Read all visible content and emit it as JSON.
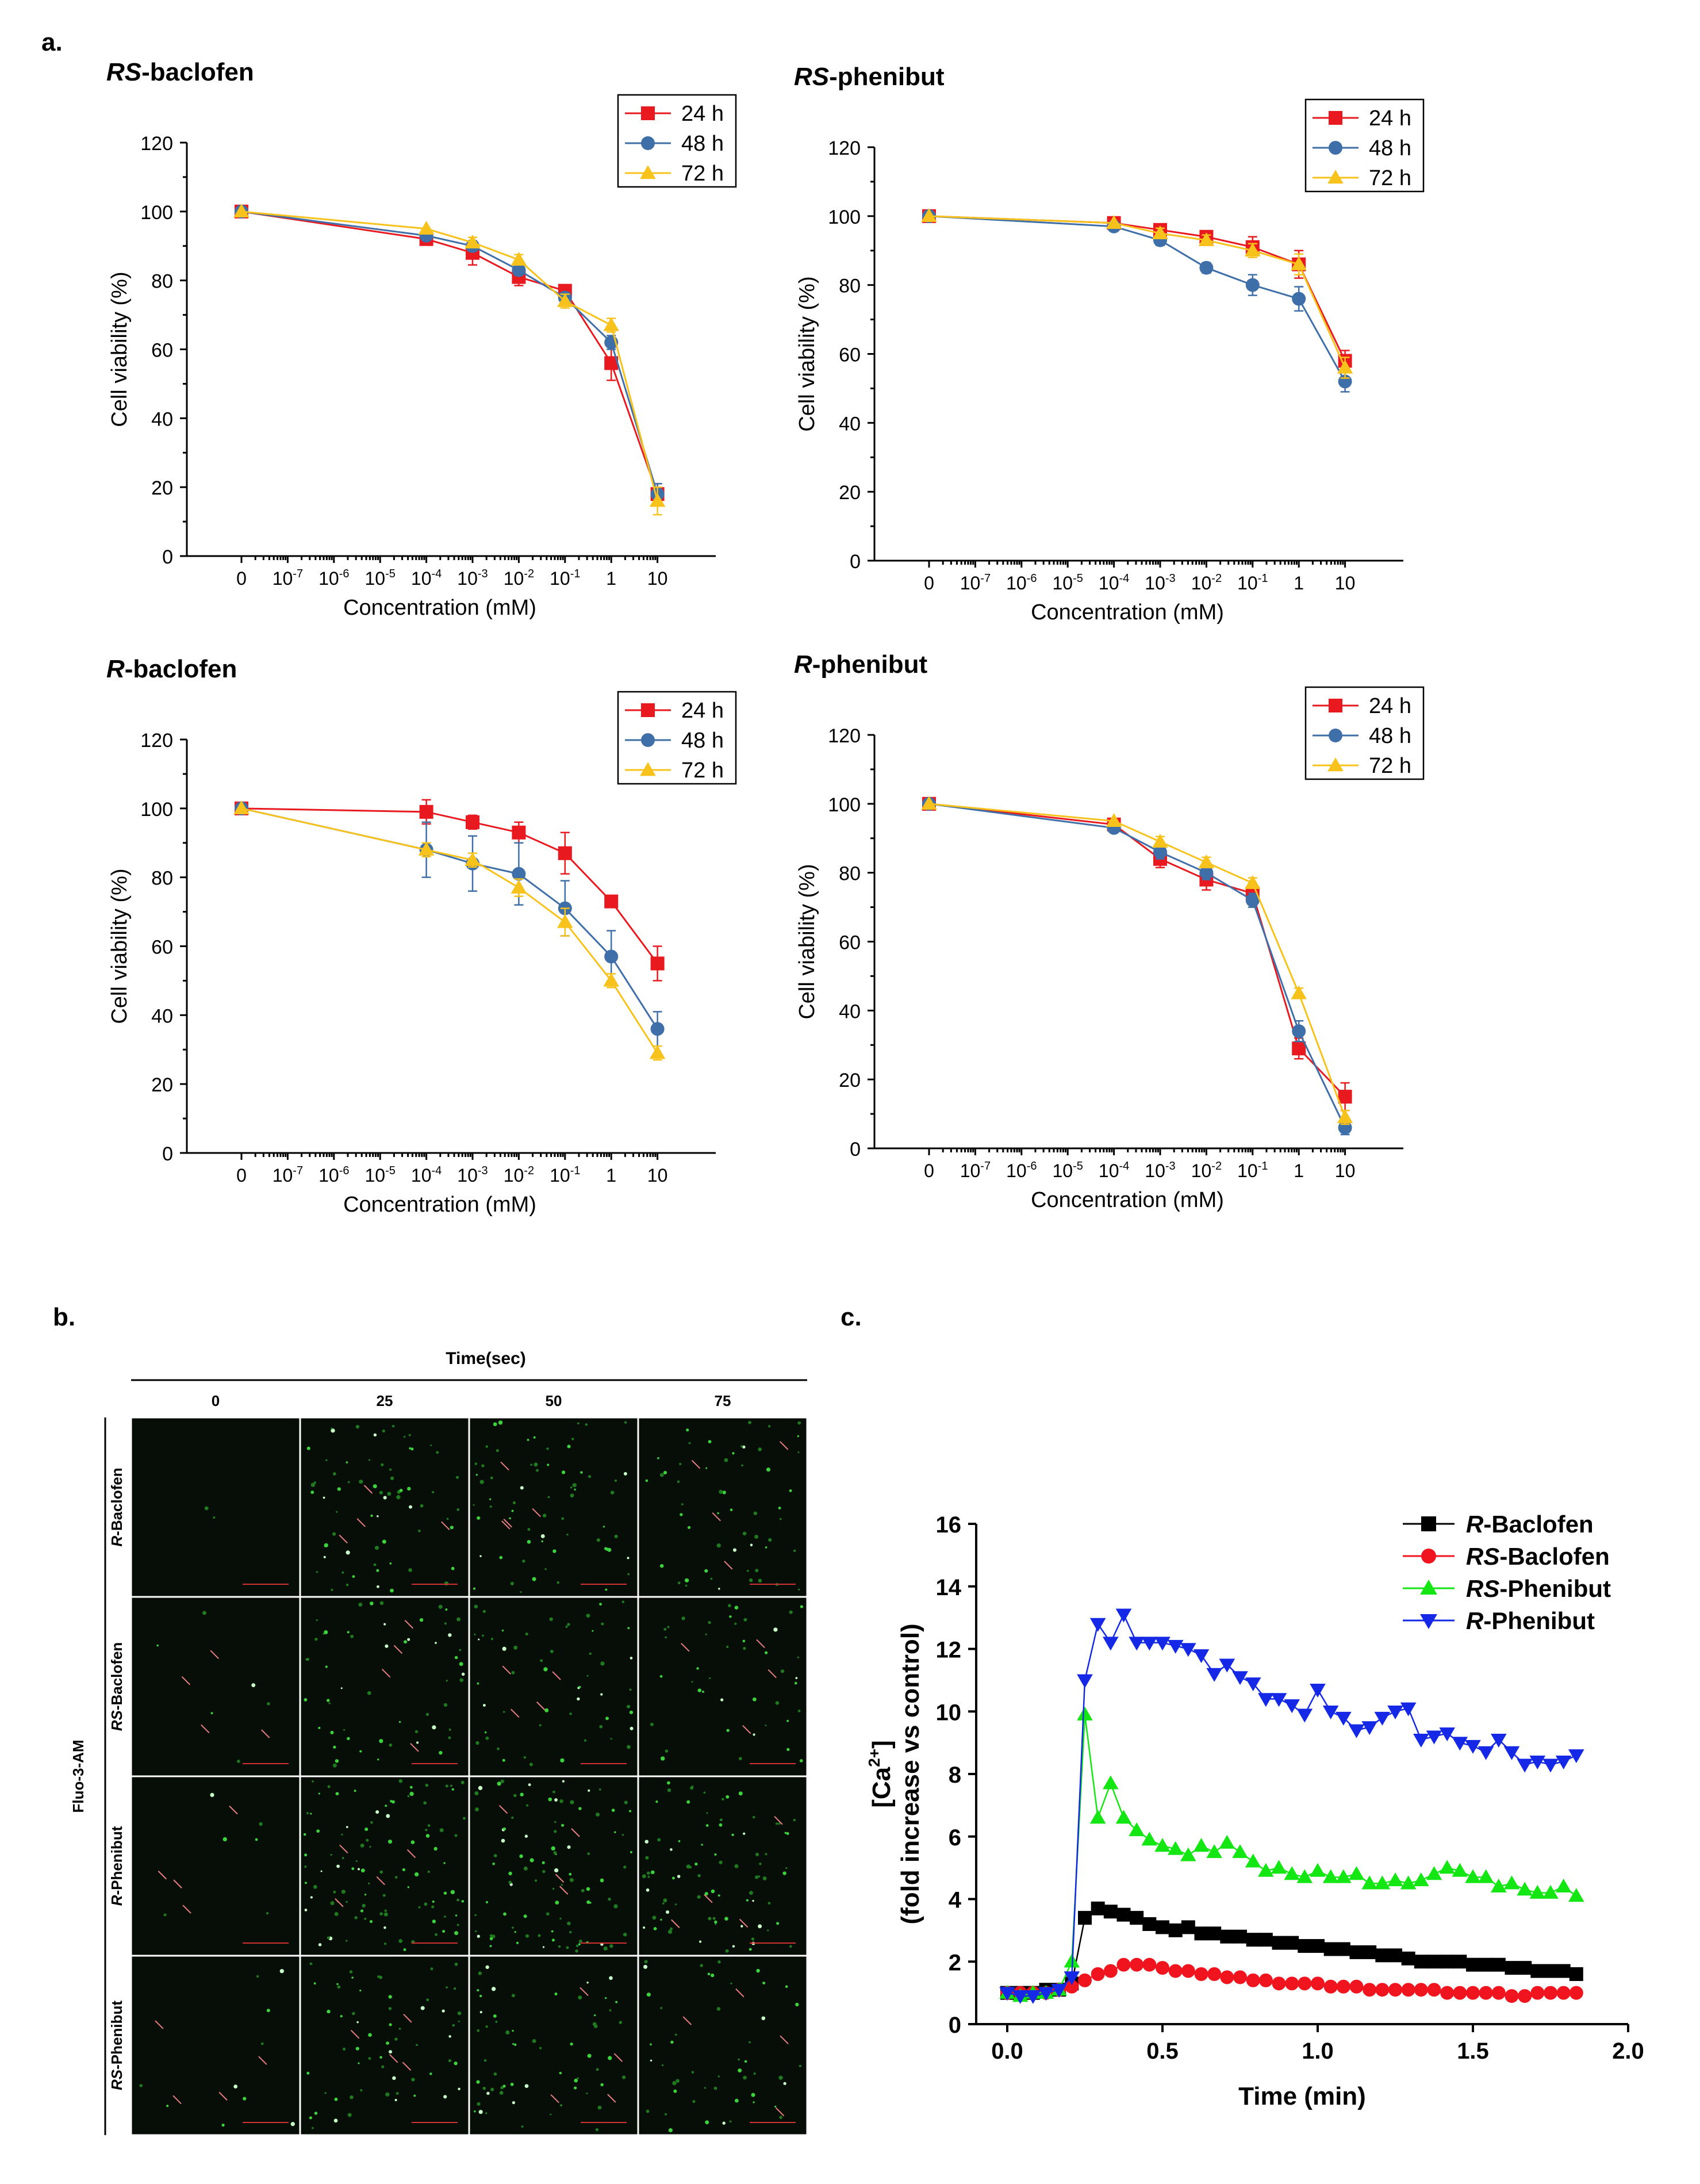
{
  "panel_letters": {
    "a": "a.",
    "b": "b.",
    "c": "c."
  },
  "colors": {
    "24h": "#e8191f",
    "48h": "#3f6fa8",
    "72h": "#f7c21b",
    "R-Baclofen": "#000000",
    "RS-Baclofen": "#f0141e",
    "RS-Phenibut": "#14e614",
    "R-Phenibut": "#1428e6"
  },
  "panel_b": {
    "header": "Time(sec)",
    "time_labels": [
      "0",
      "25",
      "50",
      "75"
    ],
    "side_label": "Fluo-3-AM",
    "row_labels": [
      "R-Baclofen",
      "RS-Baclofen",
      "R-Phenibut",
      "RS-Phenibut"
    ],
    "dot_density": [
      [
        0.02,
        0.55,
        0.55,
        0.45
      ],
      [
        0.05,
        0.45,
        0.45,
        0.35
      ],
      [
        0.05,
        0.85,
        0.8,
        0.7
      ],
      [
        0.08,
        0.5,
        0.5,
        0.4
      ]
    ]
  },
  "chart_data": [
    {
      "id": "rs-baclofen",
      "type": "line",
      "title_prefix": "RS",
      "title_suffix": "-baclofen",
      "xlabel": "Concentration (mM)",
      "ylabel": "Cell viability (%)",
      "ylim": [
        0,
        120
      ],
      "yticks": [
        "0",
        "20",
        "40",
        "60",
        "80",
        "100",
        "120"
      ],
      "xticks": [
        {
          "base": "0",
          "exp": ""
        },
        {
          "base": "10",
          "exp": "-7"
        },
        {
          "base": "10",
          "exp": "-6"
        },
        {
          "base": "10",
          "exp": "-5"
        },
        {
          "base": "10",
          "exp": "-4"
        },
        {
          "base": "10",
          "exp": "-3"
        },
        {
          "base": "10",
          "exp": "-2"
        },
        {
          "base": "10",
          "exp": "-1"
        },
        {
          "base": "1",
          "exp": ""
        },
        {
          "base": "10",
          "exp": ""
        }
      ],
      "legend_position": "top-right",
      "series": [
        {
          "name": "24 h",
          "marker": "square",
          "points": [
            [
              0,
              100,
              1
            ],
            [
              4,
              92,
              1.5
            ],
            [
              5,
              88,
              3.5
            ],
            [
              6,
              81,
              2.5
            ],
            [
              7,
              77,
              1.5
            ],
            [
              8,
              56,
              5
            ],
            [
              9,
              18,
              3
            ]
          ]
        },
        {
          "name": "48 h",
          "marker": "circle",
          "points": [
            [
              0,
              100,
              1
            ],
            [
              4,
              93,
              1
            ],
            [
              5,
              90,
              1.5
            ],
            [
              6,
              83,
              1.5
            ],
            [
              7,
              75,
              1.5
            ],
            [
              8,
              62,
              2
            ],
            [
              9,
              18,
              3
            ]
          ]
        },
        {
          "name": "72 h",
          "marker": "triangle",
          "points": [
            [
              0,
              100,
              1
            ],
            [
              4,
              95,
              1
            ],
            [
              5,
              91,
              1.5
            ],
            [
              6,
              86,
              1.5
            ],
            [
              7,
              74,
              2
            ],
            [
              8,
              67,
              2
            ],
            [
              9,
              16,
              4
            ]
          ]
        }
      ]
    },
    {
      "id": "rs-phenibut",
      "type": "line",
      "title_prefix": "RS",
      "title_suffix": "-phenibut",
      "xlabel": "Concentration (mM)",
      "ylabel": "Cell viability (%)",
      "ylim": [
        0,
        120
      ],
      "yticks": [
        "0",
        "20",
        "40",
        "60",
        "80",
        "100",
        "120"
      ],
      "xticks": [
        {
          "base": "0",
          "exp": ""
        },
        {
          "base": "10",
          "exp": "-7"
        },
        {
          "base": "10",
          "exp": "-6"
        },
        {
          "base": "10",
          "exp": "-5"
        },
        {
          "base": "10",
          "exp": "-4"
        },
        {
          "base": "10",
          "exp": "-3"
        },
        {
          "base": "10",
          "exp": "-2"
        },
        {
          "base": "10",
          "exp": "-1"
        },
        {
          "base": "1",
          "exp": ""
        },
        {
          "base": "10",
          "exp": ""
        }
      ],
      "legend_position": "top-right",
      "series": [
        {
          "name": "24 h",
          "marker": "square",
          "points": [
            [
              0,
              100,
              1
            ],
            [
              4,
              98,
              1.5
            ],
            [
              5,
              96,
              1.5
            ],
            [
              6,
              94,
              1.5
            ],
            [
              7,
              91,
              3
            ],
            [
              8,
              86,
              4
            ],
            [
              9,
              58,
              3
            ]
          ]
        },
        {
          "name": "48 h",
          "marker": "circle",
          "points": [
            [
              0,
              100,
              1
            ],
            [
              4,
              97,
              1
            ],
            [
              5,
              93,
              1.5
            ],
            [
              6,
              85,
              1.5
            ],
            [
              7,
              80,
              3
            ],
            [
              8,
              76,
              3.5
            ],
            [
              9,
              52,
              3
            ]
          ]
        },
        {
          "name": "72 h",
          "marker": "triangle",
          "points": [
            [
              0,
              100,
              1
            ],
            [
              4,
              98,
              1
            ],
            [
              5,
              95,
              1.5
            ],
            [
              6,
              93,
              1.5
            ],
            [
              7,
              90,
              2
            ],
            [
              8,
              86,
              3
            ],
            [
              9,
              56,
              3
            ]
          ]
        }
      ]
    },
    {
      "id": "r-baclofen",
      "type": "line",
      "title_prefix": "R",
      "title_suffix": "-baclofen",
      "xlabel": "Concentration (mM)",
      "ylabel": "Cell viability (%)",
      "ylim": [
        0,
        120
      ],
      "yticks": [
        "0",
        "20",
        "40",
        "60",
        "80",
        "100",
        "120"
      ],
      "xticks": [
        {
          "base": "0",
          "exp": ""
        },
        {
          "base": "10",
          "exp": "-7"
        },
        {
          "base": "10",
          "exp": "-6"
        },
        {
          "base": "10",
          "exp": "-5"
        },
        {
          "base": "10",
          "exp": "-4"
        },
        {
          "base": "10",
          "exp": "-3"
        },
        {
          "base": "10",
          "exp": "-2"
        },
        {
          "base": "10",
          "exp": "-1"
        },
        {
          "base": "1",
          "exp": ""
        },
        {
          "base": "10",
          "exp": ""
        }
      ],
      "legend_position": "top-right",
      "series": [
        {
          "name": "24 h",
          "marker": "square",
          "points": [
            [
              0,
              100,
              1
            ],
            [
              4,
              99,
              3.5
            ],
            [
              5,
              96,
              2
            ],
            [
              6,
              93,
              3
            ],
            [
              7,
              87,
              6
            ],
            [
              8,
              73,
              1.5
            ],
            [
              9,
              55,
              5
            ]
          ]
        },
        {
          "name": "48 h",
          "marker": "circle",
          "points": [
            [
              0,
              100,
              1
            ],
            [
              4,
              88,
              8
            ],
            [
              5,
              84,
              8
            ],
            [
              6,
              81,
              9
            ],
            [
              7,
              71,
              8
            ],
            [
              8,
              57,
              7.5
            ],
            [
              9,
              36,
              5
            ]
          ]
        },
        {
          "name": "72 h",
          "marker": "triangle",
          "points": [
            [
              0,
              100,
              1
            ],
            [
              4,
              88,
              2
            ],
            [
              5,
              85,
              2
            ],
            [
              6,
              77,
              2.5
            ],
            [
              7,
              67,
              4
            ],
            [
              8,
              50,
              2
            ],
            [
              9,
              29,
              2
            ]
          ]
        }
      ]
    },
    {
      "id": "r-phenibut",
      "type": "line",
      "title_prefix": "R",
      "title_suffix": "-phenibut",
      "xlabel": "Concentration (mM)",
      "ylabel": "Cell viability (%)",
      "ylim": [
        0,
        120
      ],
      "yticks": [
        "0",
        "20",
        "40",
        "60",
        "80",
        "100",
        "120"
      ],
      "xticks": [
        {
          "base": "0",
          "exp": ""
        },
        {
          "base": "10",
          "exp": "-7"
        },
        {
          "base": "10",
          "exp": "-6"
        },
        {
          "base": "10",
          "exp": "-5"
        },
        {
          "base": "10",
          "exp": "-4"
        },
        {
          "base": "10",
          "exp": "-3"
        },
        {
          "base": "10",
          "exp": "-2"
        },
        {
          "base": "10",
          "exp": "-1"
        },
        {
          "base": "1",
          "exp": ""
        },
        {
          "base": "10",
          "exp": ""
        }
      ],
      "legend_position": "top-right",
      "series": [
        {
          "name": "24 h",
          "marker": "square",
          "points": [
            [
              0,
              100,
              1
            ],
            [
              4,
              94,
              1.5
            ],
            [
              5,
              84,
              2.5
            ],
            [
              6,
              78,
              3
            ],
            [
              7,
              74,
              2
            ],
            [
              8,
              29,
              3
            ],
            [
              9,
              15,
              4
            ]
          ]
        },
        {
          "name": "48 h",
          "marker": "circle",
          "points": [
            [
              0,
              100,
              1
            ],
            [
              4,
              93,
              1
            ],
            [
              5,
              86,
              2
            ],
            [
              6,
              80,
              2
            ],
            [
              7,
              72,
              2
            ],
            [
              8,
              34,
              3
            ],
            [
              9,
              6,
              2
            ]
          ]
        },
        {
          "name": "72 h",
          "marker": "triangle",
          "points": [
            [
              0,
              100,
              1
            ],
            [
              4,
              95,
              1
            ],
            [
              5,
              89,
              1.5
            ],
            [
              6,
              83,
              1.5
            ],
            [
              7,
              77,
              1.5
            ],
            [
              8,
              45,
              1.5
            ],
            [
              9,
              9,
              2
            ]
          ]
        }
      ]
    },
    {
      "id": "calcium",
      "type": "scatter",
      "xlabel": "Time (min)",
      "ylabel_main": "(fold increase vs control)",
      "ylabel_ca": "[Ca",
      "ylabel_sup": "2+",
      "ylabel_close": "]",
      "xlim": [
        -0.1,
        2.0
      ],
      "ylim": [
        0,
        16
      ],
      "xticks": [
        "0.0",
        "0.5",
        "1.0",
        "1.5",
        "2.0"
      ],
      "yticks": [
        "0",
        "2",
        "4",
        "6",
        "8",
        "10",
        "12",
        "14",
        "16"
      ],
      "legend_position": "top-right",
      "x": [
        0,
        0.042,
        0.083,
        0.125,
        0.167,
        0.208,
        0.25,
        0.292,
        0.333,
        0.375,
        0.417,
        0.458,
        0.5,
        0.542,
        0.583,
        0.625,
        0.667,
        0.708,
        0.75,
        0.792,
        0.833,
        0.875,
        0.917,
        0.958,
        1.0,
        1.042,
        1.083,
        1.125,
        1.167,
        1.208,
        1.25,
        1.292,
        1.333,
        1.375,
        1.417,
        1.458,
        1.5,
        1.542,
        1.583,
        1.625,
        1.667,
        1.708,
        1.75,
        1.792,
        1.833
      ],
      "series": [
        {
          "name_prefix": "R",
          "name_suffix": "-Baclofen",
          "marker": "square",
          "values": [
            1.0,
            1.0,
            1.0,
            1.1,
            1.1,
            1.3,
            3.4,
            3.7,
            3.6,
            3.5,
            3.4,
            3.2,
            3.1,
            3.0,
            3.1,
            2.9,
            2.9,
            2.8,
            2.8,
            2.7,
            2.7,
            2.6,
            2.6,
            2.5,
            2.5,
            2.4,
            2.4,
            2.3,
            2.3,
            2.2,
            2.2,
            2.1,
            2.0,
            2.0,
            2.0,
            2.0,
            1.9,
            1.9,
            1.9,
            1.8,
            1.8,
            1.7,
            1.7,
            1.7,
            1.6
          ]
        },
        {
          "name_prefix": "RS",
          "name_suffix": "-Baclofen",
          "marker": "circle",
          "values": [
            1.0,
            1.0,
            1.0,
            1.0,
            1.1,
            1.2,
            1.4,
            1.6,
            1.7,
            1.9,
            1.9,
            1.9,
            1.8,
            1.7,
            1.7,
            1.6,
            1.6,
            1.5,
            1.5,
            1.4,
            1.4,
            1.3,
            1.3,
            1.3,
            1.3,
            1.2,
            1.2,
            1.2,
            1.1,
            1.1,
            1.1,
            1.1,
            1.1,
            1.1,
            1.0,
            1.0,
            1.0,
            1.0,
            1.0,
            0.9,
            0.9,
            1.0,
            1.0,
            1.0,
            1.0
          ]
        },
        {
          "name_prefix": "RS",
          "name_suffix": "-Phenibut",
          "marker": "triangle",
          "values": [
            1.0,
            0.9,
            1.0,
            1.0,
            1.1,
            2.0,
            9.9,
            6.6,
            7.7,
            6.6,
            6.2,
            5.9,
            5.7,
            5.6,
            5.4,
            5.7,
            5.5,
            5.8,
            5.5,
            5.2,
            4.9,
            5.0,
            4.8,
            4.7,
            4.9,
            4.7,
            4.7,
            4.8,
            4.5,
            4.5,
            4.6,
            4.5,
            4.6,
            4.8,
            5.0,
            4.9,
            4.7,
            4.7,
            4.4,
            4.5,
            4.3,
            4.2,
            4.2,
            4.4,
            4.1
          ]
        },
        {
          "name_prefix": "R",
          "name_suffix": "-Phenibut",
          "marker": "triangle-down",
          "values": [
            1.0,
            0.9,
            0.9,
            1.0,
            1.1,
            1.5,
            11.0,
            12.8,
            12.2,
            13.1,
            12.2,
            12.2,
            12.2,
            12.1,
            12.0,
            11.8,
            11.2,
            11.5,
            11.1,
            10.9,
            10.4,
            10.4,
            10.2,
            9.9,
            10.7,
            10.0,
            9.8,
            9.4,
            9.5,
            9.8,
            10.0,
            10.1,
            9.1,
            9.2,
            9.3,
            9.0,
            8.9,
            8.7,
            9.1,
            8.7,
            8.3,
            8.4,
            8.3,
            8.4,
            8.6
          ]
        }
      ]
    }
  ]
}
